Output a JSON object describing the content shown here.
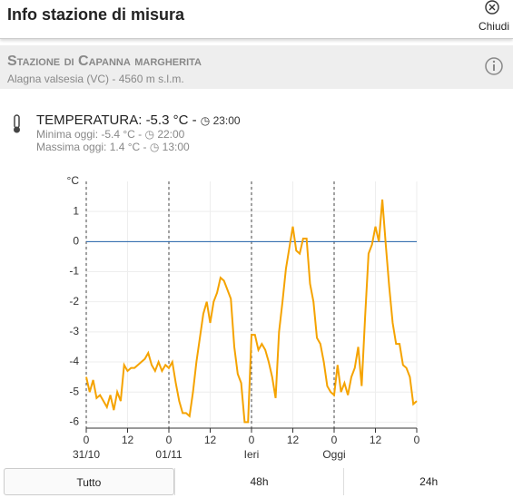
{
  "header": {
    "title": "Info stazione di misura",
    "close": "Chiudi"
  },
  "station": {
    "name": "Stazione di Capanna margherita",
    "location": "Alagna valsesia (VC) - 4560 m s.l.m."
  },
  "reading": {
    "label": "TEMPERATURA: -5.3 °C -",
    "time": "23:00",
    "min_label": "Minima oggi: -5.4 °C -",
    "min_time": "22:00",
    "max_label": "Massima oggi: 1.4 °C -",
    "max_time": "13:00"
  },
  "chart_data": {
    "type": "line",
    "y_label": "°C",
    "x": [
      0,
      1,
      2,
      3,
      4,
      5,
      6,
      7,
      8,
      9,
      10,
      11,
      12,
      13,
      14,
      15,
      16,
      17,
      18,
      19,
      20,
      21,
      22,
      23,
      24,
      25,
      26,
      27,
      28,
      29,
      30,
      31,
      32,
      33,
      34,
      35,
      36,
      37,
      38,
      39,
      40,
      41,
      42,
      43,
      44,
      45,
      46,
      47,
      48,
      49,
      50,
      51,
      52,
      53,
      54,
      55,
      56,
      57,
      58,
      59,
      60,
      61,
      62,
      63,
      64,
      65,
      66,
      67,
      68,
      69,
      70,
      71,
      72,
      73,
      74,
      75,
      76,
      77,
      78,
      79,
      80,
      81,
      82,
      83,
      84,
      85,
      86,
      87,
      88,
      89,
      90,
      91,
      92,
      93,
      94,
      95,
      96
    ],
    "series": [
      {
        "name": "Temperatura",
        "color": "#f5a300",
        "values": [
          -4.5,
          -5.0,
          -4.6,
          -5.2,
          -5.1,
          -5.3,
          -5.5,
          -5.1,
          -5.6,
          -5.0,
          -5.3,
          -4.1,
          -4.3,
          -4.2,
          -4.2,
          -4.1,
          -4.0,
          -3.9,
          -3.7,
          -4.1,
          -4.3,
          -4.0,
          -4.3,
          -4.1,
          -4.2,
          -4.0,
          -4.7,
          -5.3,
          -5.7,
          -5.7,
          -5.8,
          -5.0,
          -4.0,
          -3.2,
          -2.4,
          -2.0,
          -2.7,
          -2.0,
          -1.7,
          -1.2,
          -1.3,
          -1.6,
          -1.9,
          -3.5,
          -4.4,
          -4.7,
          -6.0,
          -6.0,
          -3.1,
          -3.1,
          -3.6,
          -3.4,
          -3.6,
          -4.0,
          -4.5,
          -5.2,
          -3.0,
          -2.0,
          -0.9,
          -0.2,
          0.5,
          -0.3,
          -0.4,
          0.1,
          0.1,
          -1.4,
          -2.0,
          -3.2,
          -3.4,
          -4.0,
          -4.8,
          -5.0,
          -5.1,
          -4.1,
          -5.0,
          -4.7,
          -5.1,
          -4.5,
          -4.2,
          -3.5,
          -4.8,
          -2.5,
          -0.4,
          -0.1,
          0.5,
          0.0,
          1.4,
          -0.1,
          -1.5,
          -2.7,
          -3.4,
          -3.4,
          -4.1,
          -4.2,
          -4.5,
          -5.4,
          -5.3
        ]
      }
    ],
    "xlim": [
      0,
      96
    ],
    "xticks": [
      0,
      12,
      {
        "value": 24,
        "label": "0"
      },
      {
        "value": 36,
        "label": "12"
      },
      {
        "value": 48,
        "label": "0"
      },
      {
        "value": 60,
        "label": "12"
      },
      {
        "value": 72,
        "label": "0"
      },
      {
        "value": 84,
        "label": "12"
      },
      {
        "value": 96,
        "label": "0"
      }
    ],
    "day_labels": [
      {
        "value": 0,
        "label": "31/10"
      },
      {
        "value": 24,
        "label": "01/11"
      },
      {
        "value": 48,
        "label": "Ieri"
      },
      {
        "value": 72,
        "label": "Oggi"
      }
    ],
    "ylim": [
      -6.2,
      2
    ],
    "yticks": [
      1,
      0,
      -1,
      -2,
      -3,
      -4,
      -5,
      -6
    ],
    "reference_line": {
      "value": 0,
      "color": "#1f5fa8"
    },
    "grid": true
  },
  "tabs": [
    "Tutto",
    "48h",
    "24h"
  ]
}
